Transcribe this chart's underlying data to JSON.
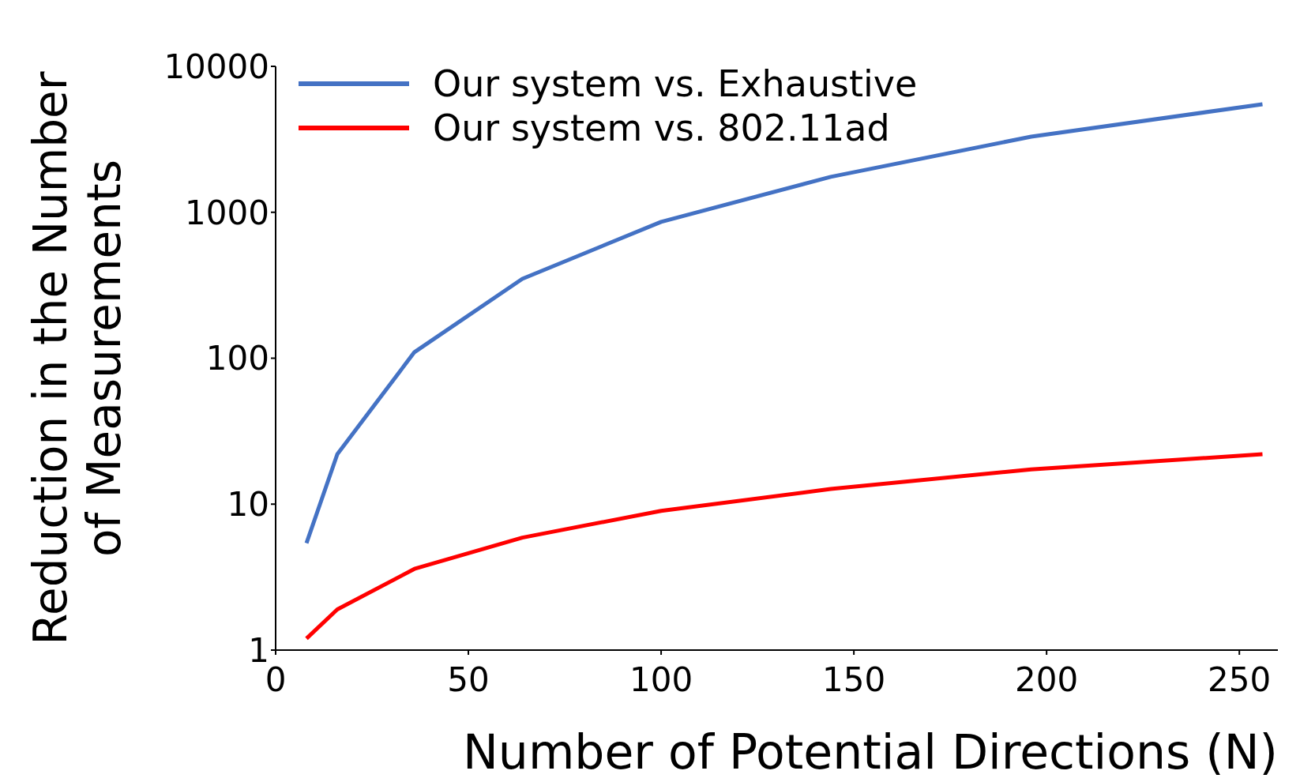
{
  "chart_data": {
    "type": "line",
    "xlabel": "Number of Potential Directions (N)",
    "ylabel": "Reduction in the Number\nof Measurements",
    "x": [
      8,
      16,
      36,
      64,
      100,
      144,
      196,
      256
    ],
    "series": [
      {
        "name": "Our system vs. Exhaustive",
        "color": "#4472c4",
        "values": [
          5.4,
          22,
          110,
          350,
          860,
          1750,
          3300,
          5500
        ]
      },
      {
        "name": "Our system vs. 802.11ad",
        "color": "#ff0000",
        "values": [
          1.2,
          1.9,
          3.6,
          5.9,
          9,
          12.7,
          17.3,
          22
        ]
      }
    ],
    "xlim": [
      0,
      260
    ],
    "xticks": [
      0,
      50,
      100,
      150,
      200,
      250
    ],
    "ylim": [
      1,
      10000
    ],
    "yticks": [
      1,
      10,
      100,
      1000,
      10000
    ],
    "log": "y",
    "grid": false,
    "legend": "top left",
    "marker": "none",
    "line_style": "solid"
  }
}
